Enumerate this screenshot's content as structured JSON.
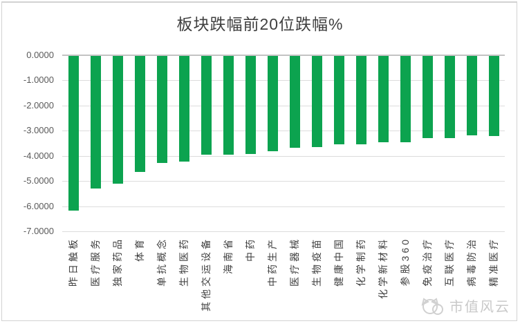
{
  "title": "板块跌幅前20位跌幅%",
  "watermark": {
    "text": "市值风云"
  },
  "colors": {
    "bar": "#0CA34F",
    "gridline": "#DCDCDC",
    "zero_line": "#C3C3C3",
    "title_text": "#3F3F3F",
    "y_axis_text": "#595959",
    "x_axis_text": "#404040",
    "watermark_text": "#C9C9C9",
    "frame_border": "#D2D2D2",
    "background": "#FFFFFF"
  },
  "chart_data": {
    "type": "bar",
    "title": "板块跌幅前20位跌幅%",
    "categories": [
      "昨日触板",
      "医疗服务",
      "独家药品",
      "体育",
      "单抗概念",
      "生物医药",
      "其他交运设备",
      "海南省",
      "中药",
      "中药生产",
      "医疗器械",
      "生物疫苗",
      "健康中国",
      "化学制药",
      "化学新材料",
      "参股360",
      "免疫治疗",
      "互联医疗",
      "病毒防治",
      "精准医疗"
    ],
    "values": [
      -6.18,
      -5.29,
      -5.1,
      -4.63,
      -4.27,
      -4.24,
      -3.96,
      -3.96,
      -3.93,
      -3.82,
      -3.68,
      -3.66,
      -3.55,
      -3.53,
      -3.47,
      -3.46,
      -3.3,
      -3.3,
      -3.18,
      -3.21
    ],
    "xlabel": "",
    "ylabel": "",
    "ylim": [
      -7,
      0
    ],
    "ytick_labels": [
      "0.0000",
      "-1.0000",
      "-2.0000",
      "-3.0000",
      "-4.0000",
      "-5.0000",
      "-6.0000",
      "-7.0000"
    ],
    "grid": true,
    "legend_position": "none",
    "bar_orientation": "vertical-negative",
    "x_label_rotation_deg": 90
  }
}
